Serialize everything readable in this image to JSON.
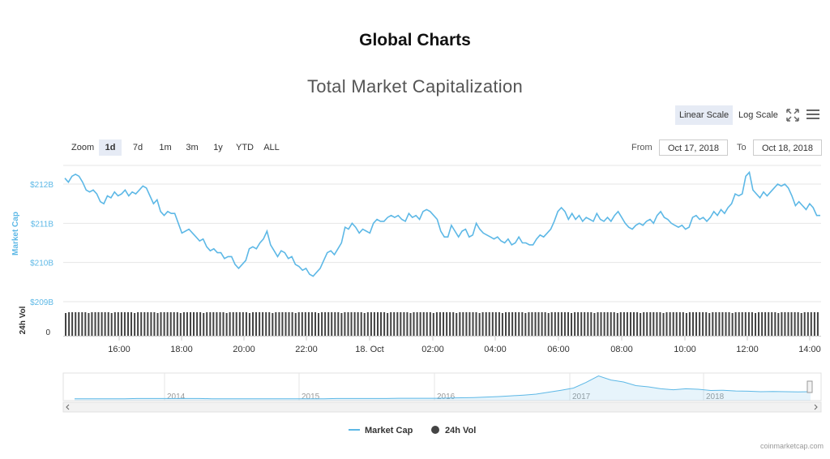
{
  "page": {
    "title": "Global Charts",
    "credit": "coinmarketcap.com"
  },
  "toolbar": {
    "linear_scale": "Linear Scale",
    "log_scale": "Log Scale",
    "fullscreen_icon": "expand-arrows-icon",
    "menu_icon": "hamburger-menu-icon"
  },
  "zoom": {
    "label": "Zoom",
    "buttons": [
      "1d",
      "7d",
      "1m",
      "3m",
      "1y",
      "YTD",
      "ALL"
    ],
    "active": "1d"
  },
  "range": {
    "from_label": "From",
    "from_value": "Oct 17, 2018",
    "to_label": "To",
    "to_value": "Oct 18, 2018"
  },
  "colors": {
    "market_cap": "#5DB8E6",
    "volume": "#444444",
    "grid": "#e6e6e6",
    "axis_label": "#5DB8E6",
    "active_button": "#e6ebf5"
  },
  "chart_data": {
    "type": "line",
    "title": "Total Market Capitalization",
    "series": [
      {
        "name": "Market Cap",
        "axis": "left",
        "values": [
          212.15,
          212.05,
          212.2,
          212.25,
          212.2,
          212.05,
          211.85,
          211.8,
          211.85,
          211.75,
          211.55,
          211.5,
          211.7,
          211.65,
          211.8,
          211.7,
          211.75,
          211.85,
          211.7,
          211.8,
          211.75,
          211.85,
          211.95,
          211.9,
          211.7,
          211.5,
          211.6,
          211.3,
          211.2,
          211.3,
          211.25,
          211.25,
          211.0,
          210.75,
          210.8,
          210.85,
          210.75,
          210.65,
          210.55,
          210.6,
          210.4,
          210.3,
          210.35,
          210.25,
          210.25,
          210.1,
          210.15,
          210.15,
          209.95,
          209.85,
          209.95,
          210.05,
          210.35,
          210.4,
          210.35,
          210.5,
          210.6,
          210.8,
          210.45,
          210.3,
          210.15,
          210.3,
          210.25,
          210.1,
          210.15,
          209.95,
          209.9,
          209.8,
          209.85,
          209.7,
          209.65,
          209.75,
          209.85,
          210.05,
          210.25,
          210.3,
          210.2,
          210.35,
          210.5,
          210.9,
          210.85,
          211.0,
          210.9,
          210.75,
          210.85,
          210.8,
          210.75,
          211.0,
          211.1,
          211.05,
          211.05,
          211.15,
          211.2,
          211.15,
          211.2,
          211.1,
          211.05,
          211.25,
          211.15,
          211.2,
          211.1,
          211.3,
          211.35,
          211.3,
          211.2,
          211.1,
          210.8,
          210.65,
          210.65,
          210.95,
          210.8,
          210.65,
          210.8,
          210.85,
          210.65,
          210.7,
          211.0,
          210.85,
          210.75,
          210.7,
          210.65,
          210.6,
          210.65,
          210.55,
          210.5,
          210.6,
          210.45,
          210.5,
          210.65,
          210.5,
          210.5,
          210.45,
          210.45,
          210.6,
          210.7,
          210.65,
          210.75,
          210.85,
          211.05,
          211.3,
          211.4,
          211.3,
          211.1,
          211.25,
          211.1,
          211.2,
          211.05,
          211.15,
          211.1,
          211.05,
          211.25,
          211.1,
          211.05,
          211.15,
          211.05,
          211.2,
          211.3,
          211.15,
          211.0,
          210.9,
          210.85,
          210.95,
          211.0,
          210.95,
          211.05,
          211.1,
          211.0,
          211.2,
          211.3,
          211.15,
          211.1,
          211.0,
          210.95,
          210.9,
          210.95,
          210.85,
          210.9,
          211.15,
          211.2,
          211.1,
          211.15,
          211.05,
          211.15,
          211.3,
          211.2,
          211.35,
          211.25,
          211.4,
          211.5,
          211.75,
          211.7,
          211.75,
          212.2,
          212.3,
          211.85,
          211.75,
          211.65,
          211.8,
          211.7,
          211.8,
          211.9,
          212.0,
          211.95,
          212.0,
          211.9,
          211.7,
          211.45,
          211.55,
          211.45,
          211.35,
          211.5,
          211.4,
          211.2,
          211.2
        ]
      },
      {
        "name": "24h Vol",
        "axis": "bottom",
        "note": ""
      }
    ],
    "x_ticks": [
      "16:00",
      "18:00",
      "20:00",
      "22:00",
      "18. Oct",
      "02:00",
      "04:00",
      "06:00",
      "08:00",
      "10:00",
      "12:00",
      "14:00"
    ],
    "y_ticks": [
      "$212B",
      "$211B",
      "$210B",
      "$209B"
    ],
    "ylim": [
      209,
      212.6
    ],
    "ylabel": "Market Cap",
    "volume_ylabel": "24h Vol",
    "volume_tick": "0",
    "volume_bar_count": 230,
    "navigator": {
      "years": [
        "2014",
        "2015",
        "2016",
        "2017",
        "2018"
      ],
      "values": [
        0.01,
        0.01,
        0.01,
        0.01,
        0.01,
        0.02,
        0.02,
        0.02,
        0.02,
        0.02,
        0.02,
        0.01,
        0.01,
        0.01,
        0.01,
        0.01,
        0.01,
        0.01,
        0.01,
        0.01,
        0.01,
        0.02,
        0.02,
        0.02,
        0.02,
        0.02,
        0.03,
        0.03,
        0.03,
        0.03,
        0.04,
        0.05,
        0.06,
        0.08,
        0.1,
        0.13,
        0.16,
        0.2,
        0.28,
        0.36,
        0.45,
        0.68,
        0.95,
        0.78,
        0.7,
        0.55,
        0.5,
        0.42,
        0.38,
        0.42,
        0.4,
        0.35,
        0.36,
        0.33,
        0.32,
        0.3,
        0.31,
        0.3,
        0.29,
        0.3
      ]
    },
    "legend": {
      "position": "bottom",
      "items": [
        "Market Cap",
        "24h Vol"
      ]
    },
    "grid": true
  }
}
